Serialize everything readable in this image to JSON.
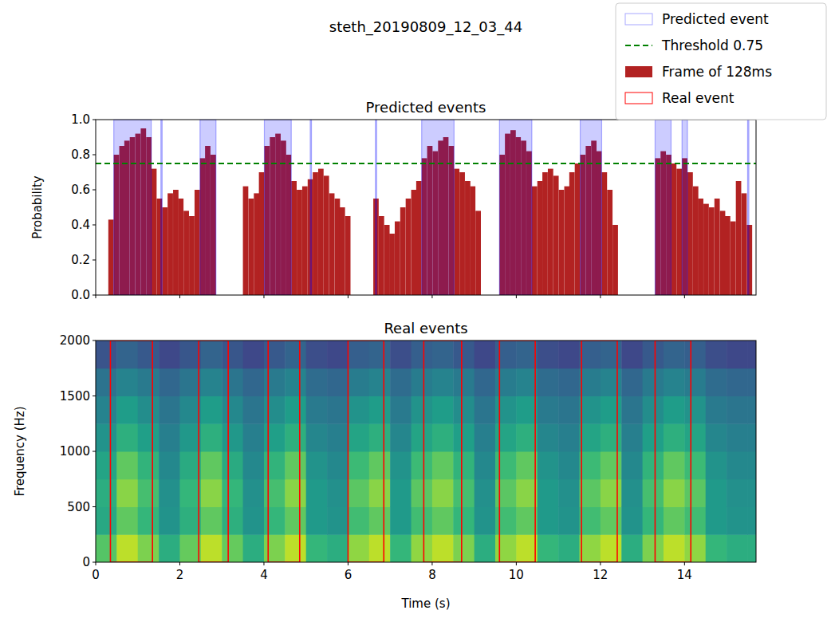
{
  "figure_title": "steth_20190809_12_03_44",
  "chart_data": [
    {
      "type": "bar",
      "title": "Predicted events",
      "ylabel": "Probability",
      "xlim": [
        0,
        15.7
      ],
      "ylim": [
        0,
        1
      ],
      "xticks": [
        0,
        2,
        4,
        6,
        8,
        10,
        12,
        14
      ],
      "yticks": [
        {
          "value": 0,
          "label": "0.0"
        },
        {
          "value": 0.2,
          "label": "0.2"
        },
        {
          "value": 0.4,
          "label": "0.4"
        },
        {
          "value": 0.6,
          "label": "0.6"
        },
        {
          "value": 0.8,
          "label": "0.8"
        },
        {
          "value": 1,
          "label": "1.0"
        }
      ],
      "tick_labels": "y",
      "legend": "upper right",
      "series": [
        {
          "name": "Predicted event",
          "type": "span",
          "color": "#0000ff",
          "starts": [
            0.43,
            1.55,
            2.48,
            4.01,
            5.1,
            6.65,
            7.75,
            9.6,
            11.52,
            13.3,
            13.94,
            15.5
          ],
          "ends": [
            1.32,
            1.58,
            2.86,
            4.65,
            5.13,
            6.68,
            8.52,
            10.37,
            12.03,
            13.68,
            14.07,
            15.53
          ]
        },
        {
          "name": "Threshold 0.75",
          "type": "hline",
          "color": "#008000",
          "line_style": "dashed",
          "values": [
            0.75
          ]
        },
        {
          "name": "Frame of 128ms",
          "type": "bar",
          "color": "#b22222",
          "frame_width": 0.128,
          "x": [
            0.3,
            0.43,
            0.56,
            0.68,
            0.81,
            0.94,
            1.07,
            1.2,
            1.32,
            1.45,
            1.58,
            1.71,
            1.84,
            1.96,
            2.09,
            2.22,
            2.35,
            2.48,
            2.6,
            2.73,
            3.5,
            3.63,
            3.76,
            3.88,
            4.01,
            4.14,
            4.27,
            4.4,
            4.52,
            4.65,
            4.78,
            4.91,
            5.04,
            5.16,
            5.29,
            5.42,
            5.55,
            5.68,
            5.8,
            5.93,
            6.6,
            6.73,
            6.86,
            6.98,
            7.11,
            7.24,
            7.37,
            7.5,
            7.62,
            7.75,
            7.88,
            8.01,
            8.14,
            8.26,
            8.39,
            8.52,
            8.65,
            8.78,
            8.9,
            9.03,
            9.6,
            9.73,
            9.86,
            9.98,
            10.11,
            10.24,
            10.37,
            10.5,
            10.62,
            10.75,
            10.88,
            11.01,
            11.14,
            11.26,
            11.39,
            11.52,
            11.65,
            11.78,
            11.9,
            12.03,
            12.16,
            12.29,
            13.3,
            13.43,
            13.56,
            13.68,
            13.81,
            13.94,
            14.07,
            14.2,
            14.32,
            14.45,
            14.58,
            14.71,
            14.84,
            14.96,
            15.09,
            15.22,
            15.35,
            15.48
          ],
          "values": [
            0.43,
            0.8,
            0.85,
            0.88,
            0.9,
            0.92,
            0.95,
            0.9,
            0.72,
            0.55,
            0.5,
            0.58,
            0.6,
            0.55,
            0.48,
            0.45,
            0.6,
            0.78,
            0.85,
            0.8,
            0.62,
            0.55,
            0.58,
            0.7,
            0.85,
            0.9,
            0.92,
            0.88,
            0.8,
            0.65,
            0.6,
            0.62,
            0.66,
            0.7,
            0.72,
            0.68,
            0.58,
            0.55,
            0.5,
            0.45,
            0.55,
            0.45,
            0.4,
            0.35,
            0.42,
            0.5,
            0.55,
            0.6,
            0.65,
            0.78,
            0.85,
            0.82,
            0.88,
            0.9,
            0.85,
            0.72,
            0.7,
            0.65,
            0.62,
            0.48,
            0.8,
            0.92,
            0.94,
            0.9,
            0.88,
            0.82,
            0.62,
            0.65,
            0.7,
            0.72,
            0.68,
            0.6,
            0.62,
            0.7,
            0.75,
            0.8,
            0.85,
            0.88,
            0.82,
            0.7,
            0.6,
            0.4,
            0.78,
            0.82,
            0.8,
            0.75,
            0.72,
            0.78,
            0.7,
            0.62,
            0.55,
            0.52,
            0.5,
            0.55,
            0.48,
            0.45,
            0.42,
            0.65,
            0.58,
            0.4
          ]
        }
      ]
    },
    {
      "type": "heatmap",
      "title": "Real events",
      "xlabel": "Time (s)",
      "ylabel": "Frequency (Hz)",
      "xlim": [
        0,
        15.7
      ],
      "ylim": [
        0,
        2000
      ],
      "xticks": [
        0,
        2,
        4,
        6,
        8,
        10,
        12,
        14
      ],
      "yticks": [
        0,
        500,
        1000,
        1500,
        2000
      ],
      "color_range": [
        0,
        1
      ],
      "x_edges": [
        0,
        0.5,
        1,
        1.5,
        2,
        2.5,
        3,
        3.5,
        4,
        4.5,
        5,
        5.5,
        6,
        6.5,
        7,
        7.5,
        8,
        8.5,
        9,
        9.5,
        10,
        10.5,
        11,
        11.5,
        12,
        12.5,
        13,
        13.5,
        14,
        14.5,
        15,
        15.5,
        15.7
      ],
      "y_edges": [
        0,
        250,
        500,
        750,
        1000,
        1250,
        1500,
        1750,
        2000
      ],
      "cells": [
        [
          0.73,
          0.9,
          0.8,
          0.62,
          0.76,
          0.9,
          0.76,
          0.62,
          0.8,
          0.9,
          0.66,
          0.62,
          0.83,
          0.9,
          0.66,
          0.83,
          0.9,
          0.8,
          0.62,
          0.83,
          0.9,
          0.66,
          0.62,
          0.83,
          0.9,
          0.62,
          0.8,
          0.9,
          0.83,
          0.66,
          0.62,
          0.62
        ],
        [
          0.6,
          0.75,
          0.66,
          0.51,
          0.63,
          0.75,
          0.63,
          0.51,
          0.66,
          0.75,
          0.54,
          0.51,
          0.69,
          0.75,
          0.54,
          0.69,
          0.75,
          0.66,
          0.51,
          0.69,
          0.75,
          0.54,
          0.51,
          0.69,
          0.75,
          0.51,
          0.66,
          0.75,
          0.69,
          0.54,
          0.51,
          0.51
        ],
        [
          0.62,
          0.82,
          0.7,
          0.5,
          0.66,
          0.82,
          0.66,
          0.5,
          0.7,
          0.82,
          0.54,
          0.5,
          0.74,
          0.82,
          0.54,
          0.74,
          0.82,
          0.7,
          0.5,
          0.74,
          0.82,
          0.54,
          0.5,
          0.74,
          0.82,
          0.5,
          0.7,
          0.82,
          0.74,
          0.54,
          0.5,
          0.5
        ],
        [
          0.58,
          0.75,
          0.65,
          0.47,
          0.61,
          0.75,
          0.61,
          0.47,
          0.65,
          0.75,
          0.51,
          0.47,
          0.68,
          0.75,
          0.51,
          0.68,
          0.75,
          0.65,
          0.47,
          0.68,
          0.75,
          0.51,
          0.47,
          0.68,
          0.75,
          0.47,
          0.65,
          0.75,
          0.68,
          0.51,
          0.47,
          0.47
        ],
        [
          0.51,
          0.63,
          0.56,
          0.43,
          0.53,
          0.63,
          0.53,
          0.43,
          0.56,
          0.63,
          0.46,
          0.43,
          0.58,
          0.63,
          0.46,
          0.58,
          0.63,
          0.56,
          0.43,
          0.58,
          0.63,
          0.46,
          0.43,
          0.58,
          0.63,
          0.43,
          0.56,
          0.63,
          0.58,
          0.46,
          0.43,
          0.43
        ],
        [
          0.45,
          0.55,
          0.49,
          0.39,
          0.47,
          0.55,
          0.47,
          0.39,
          0.49,
          0.55,
          0.41,
          0.39,
          0.51,
          0.55,
          0.41,
          0.51,
          0.55,
          0.49,
          0.39,
          0.51,
          0.55,
          0.41,
          0.39,
          0.51,
          0.55,
          0.39,
          0.49,
          0.55,
          0.51,
          0.41,
          0.39,
          0.39
        ],
        [
          0.38,
          0.45,
          0.41,
          0.33,
          0.39,
          0.45,
          0.39,
          0.33,
          0.41,
          0.45,
          0.35,
          0.33,
          0.42,
          0.45,
          0.35,
          0.42,
          0.45,
          0.41,
          0.33,
          0.42,
          0.45,
          0.35,
          0.33,
          0.42,
          0.45,
          0.33,
          0.41,
          0.45,
          0.42,
          0.35,
          0.33,
          0.33
        ],
        [
          0.26,
          0.32,
          0.28,
          0.22,
          0.27,
          0.32,
          0.27,
          0.22,
          0.28,
          0.32,
          0.24,
          0.22,
          0.3,
          0.32,
          0.24,
          0.3,
          0.32,
          0.28,
          0.22,
          0.3,
          0.32,
          0.24,
          0.22,
          0.3,
          0.32,
          0.22,
          0.28,
          0.32,
          0.3,
          0.24,
          0.22,
          0.22
        ]
      ],
      "series": [
        {
          "name": "Real event",
          "type": "span",
          "color": "#ff0000",
          "starts": [
            0.35,
            2.45,
            4.1,
            6.0,
            7.8,
            9.6,
            11.55,
            13.3
          ],
          "ends": [
            1.35,
            3.15,
            4.85,
            6.85,
            8.7,
            10.45,
            12.4,
            14.15
          ]
        }
      ]
    }
  ]
}
